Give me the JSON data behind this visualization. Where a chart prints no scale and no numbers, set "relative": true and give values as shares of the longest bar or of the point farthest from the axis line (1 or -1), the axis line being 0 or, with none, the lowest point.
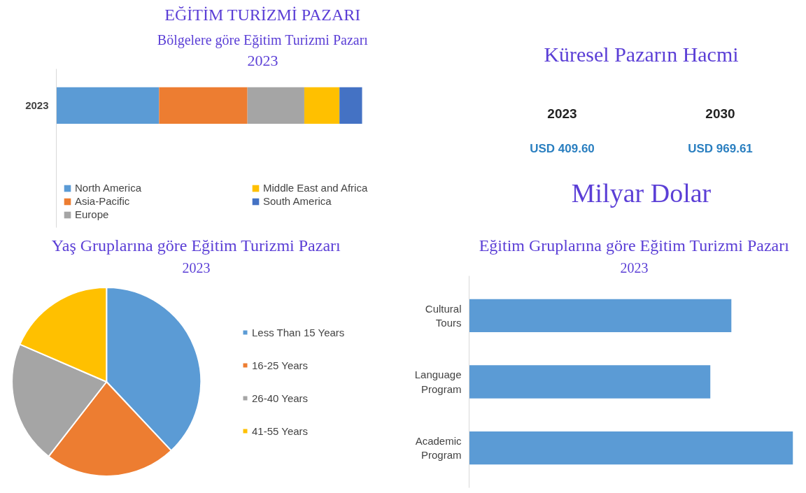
{
  "chart_data": [
    {
      "type": "bar",
      "title": "EĞİTİM TURİZMİ PAZARI",
      "subtitle": "Bölgelere göre Eğitim Turizmi Pazarı",
      "annotations": [
        "2023"
      ],
      "orientation": "horizontal",
      "stacked": true,
      "relative": true,
      "legend": "bottom",
      "categories": [
        "2023"
      ],
      "series": [
        {
          "name": "North America",
          "color": "#5b9bd5",
          "values": [
            0.336
          ]
        },
        {
          "name": "Asia-Pacific",
          "color": "#ed7d31",
          "values": [
            0.289
          ]
        },
        {
          "name": "Europe",
          "color": "#a5a5a5",
          "values": [
            0.186
          ]
        },
        {
          "name": "Middle East and Africa",
          "color": "#ffc000",
          "values": [
            0.115
          ]
        },
        {
          "name": "South America",
          "color": "#4472c4",
          "values": [
            0.074
          ]
        }
      ]
    },
    {
      "type": "other",
      "title": "Küresel Pazarın Hacmi",
      "categories": [
        "2023",
        "2030"
      ],
      "value_labels": [
        "USD 409.60",
        "USD 969.61"
      ],
      "annotations": [
        "Milyar Dolar"
      ]
    },
    {
      "type": "pie",
      "title": "Yaş Gruplarına göre Eğitim Turizmi Pazarı",
      "subtitle": "2023",
      "legend": "right",
      "categories": [
        "Less Than 15 Years",
        "16-25 Years",
        "26-40 Years",
        "41-55 Years"
      ],
      "values": [
        38,
        22.5,
        21,
        18.5
      ],
      "colors": [
        "#5b9bd5",
        "#ed7d31",
        "#a5a5a5",
        "#ffc000"
      ]
    },
    {
      "type": "bar",
      "title": "Eğitim Gruplarına göre Eğitim Turizmi Pazarı",
      "subtitle": "2023",
      "orientation": "horizontal",
      "relative": true,
      "categories": [
        "Cultural Tours",
        "Language Program",
        "Academic Program"
      ],
      "values": [
        0.81,
        0.745,
        1
      ],
      "color": "#5b9bd5"
    }
  ]
}
